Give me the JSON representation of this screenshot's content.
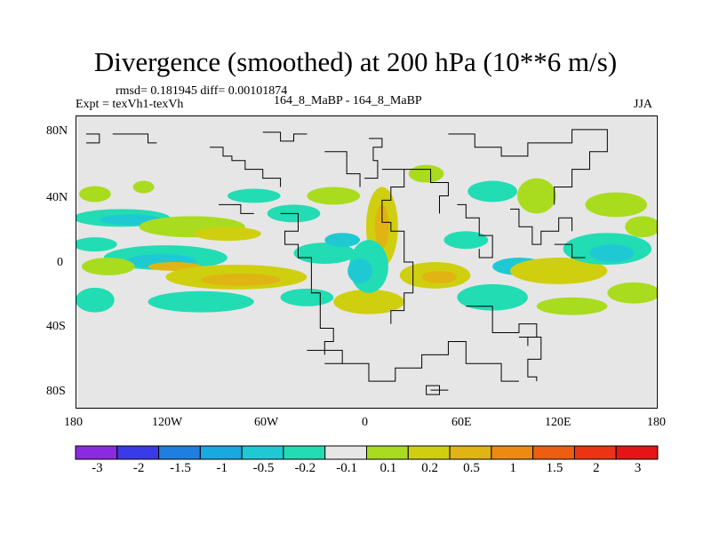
{
  "title": "Divergence (smoothed) at 200 hPa (10**6 m/s)",
  "stats": "rmsd= 0.181945 diff= 0.00101874",
  "expt": "Expt = texVh1-texVh",
  "runs": "164_8_MaBP - 164_8_MaBP",
  "season": "JJA",
  "axes": {
    "lat_labels": [
      "80N",
      "40N",
      "0",
      "40S",
      "80S"
    ],
    "lon_labels": [
      "180",
      "120W",
      "60W",
      "0",
      "60E",
      "120E",
      "180"
    ]
  },
  "colorbar": {
    "colors": [
      "#8a2be2",
      "#3a3ae8",
      "#1f7fe0",
      "#17a9e0",
      "#1fc9d4",
      "#22dcb4",
      "#e6e6e6",
      "#a9dc1e",
      "#cfcf10",
      "#e0b412",
      "#ec8a12",
      "#ee5e12",
      "#ec3414",
      "#e61414"
    ],
    "labels": [
      "-3",
      "-2",
      "-1.5",
      "-1",
      "-0.5",
      "-0.2",
      "-0.1",
      "0.1",
      "0.2",
      "0.5",
      "1",
      "1.5",
      "2",
      "3"
    ]
  }
}
